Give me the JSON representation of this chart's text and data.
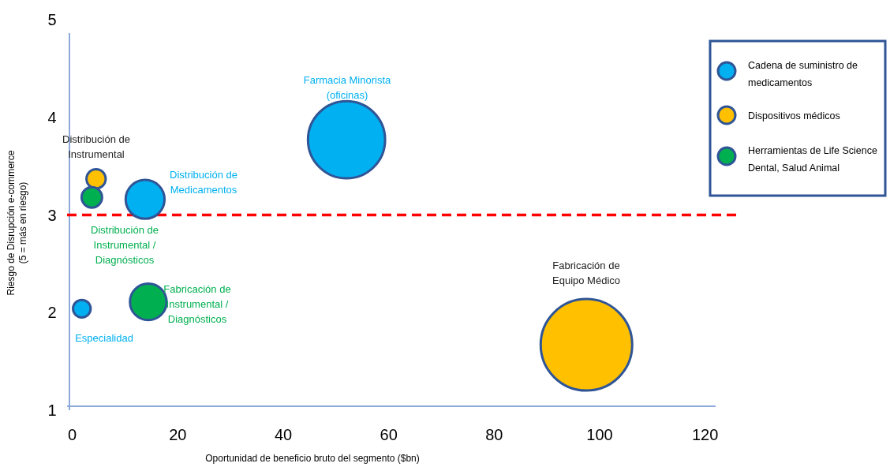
{
  "chart_data": {
    "type": "bubble",
    "xlabel": "Oportunidad de beneficio bruto del segmento ($bn)",
    "ylabel": "Riesgo de Disrupción e-commerce\n(5 = más en riesgo)",
    "xlim": [
      -1,
      122
    ],
    "xticks": [
      0,
      20,
      40,
      60,
      80,
      100,
      120
    ],
    "ylim": [
      1,
      5
    ],
    "yticks": [
      1,
      2,
      3,
      4,
      5
    ],
    "grid": false,
    "legend": "top right",
    "marker": "circle",
    "series": [
      {
        "name": "Cadena de suministro de medicamentos",
        "color": "#00b0f0",
        "x": [
          52,
          13.8,
          1.8
        ],
        "values": [
          3.77,
          3.16,
          2.04
        ],
        "sizes": [
          0.71,
          0.18,
          0.037
        ]
      },
      {
        "name": "Dispositivos médicos",
        "color": "#ffc000",
        "x": [
          97.5,
          4.5
        ],
        "values": [
          1.67,
          3.37
        ],
        "sizes": [
          1,
          0.044
        ]
      },
      {
        "name": "Herramientas de Life Science Dental, Salud Animal",
        "color": "#00b050",
        "x": [
          3.7,
          14.4
        ],
        "values": [
          3.18,
          2.11
        ],
        "sizes": [
          0.05,
          0.16
        ]
      }
    ],
    "ref_lines": [
      {
        "axis": "y",
        "value": 3,
        "color": "#ff0000",
        "line_style": "dashed"
      }
    ],
    "annotations": [
      "Farmacia Minorista\n(oficinas)",
      "Fabricación de\nEquipo Médico",
      "Distribución de\nMedicamentos",
      "Distribución de\nInstrumental",
      "Distribución de\nInstrumental /\nDiagnósticos",
      "Fabricación de\nInstrumental /\nDiagnósticos",
      "Especialidad"
    ]
  }
}
